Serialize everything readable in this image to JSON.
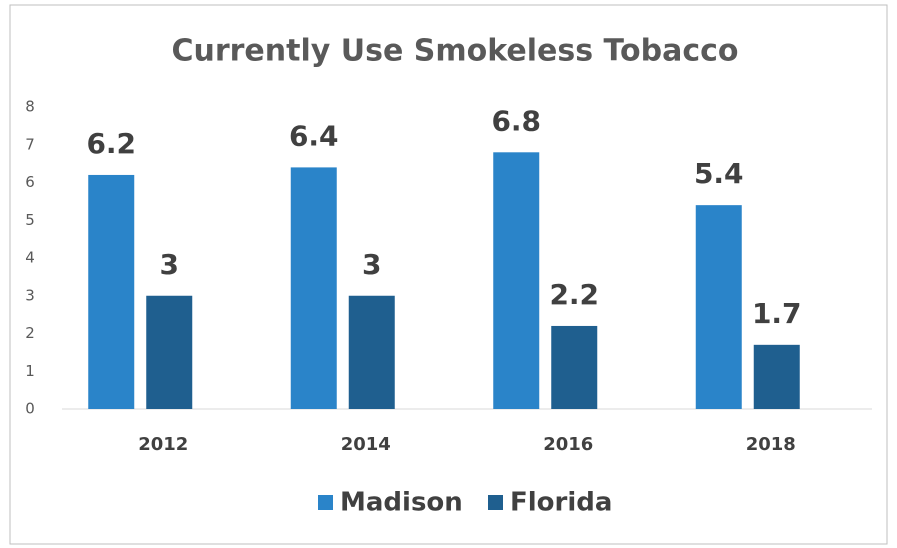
{
  "chart_data": {
    "type": "bar",
    "title": "Currently Use Smokeless Tobacco",
    "categories": [
      "2012",
      "2014",
      "2016",
      "2018"
    ],
    "series": [
      {
        "name": "Madison",
        "color": "#2a84c9",
        "values": [
          6.2,
          6.4,
          6.8,
          5.4
        ]
      },
      {
        "name": "Florida",
        "color": "#1f5f8f",
        "values": [
          3,
          3,
          2.2,
          1.7
        ]
      }
    ],
    "ylim": [
      0,
      8
    ],
    "yticks": [
      0,
      1,
      2,
      3,
      4,
      5,
      6,
      7,
      8
    ],
    "grid": false,
    "legend": "bottom"
  }
}
